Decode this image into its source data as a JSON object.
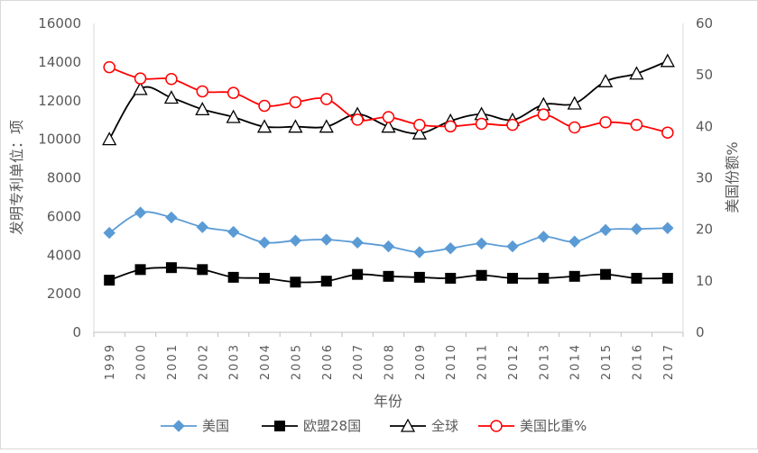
{
  "chart_data": {
    "type": "line",
    "title": "",
    "xlabel": "年份",
    "ylabel": "发明专利单位：项",
    "y2label": "美国份额%",
    "ylim": [
      0,
      16000
    ],
    "y2lim": [
      0,
      60
    ],
    "yticks": [
      "0",
      "2000",
      "4000",
      "6000",
      "8000",
      "10000",
      "12000",
      "14000",
      "16000"
    ],
    "y2ticks": [
      "0",
      "10",
      "20",
      "30",
      "40",
      "50",
      "60"
    ],
    "categories": [
      "1999",
      "2000",
      "2001",
      "2002",
      "2003",
      "2004",
      "2005",
      "2006",
      "2007",
      "2008",
      "2009",
      "2010",
      "2011",
      "2012",
      "2013",
      "2014",
      "2015",
      "2016",
      "2017"
    ],
    "grid": false,
    "legend": "bottom",
    "series": [
      {
        "name": "美国",
        "axis": "left",
        "color": "#5b9bd5",
        "marker": "diamond",
        "values": [
          5150,
          6200,
          5950,
          5450,
          5200,
          4650,
          4750,
          4800,
          4650,
          4450,
          4150,
          4350,
          4600,
          4450,
          4950,
          4700,
          5300,
          5350,
          5400
        ]
      },
      {
        "name": "欧盟28国",
        "axis": "left",
        "color": "#000000",
        "marker": "square",
        "values": [
          2700,
          3250,
          3350,
          3250,
          2850,
          2800,
          2600,
          2650,
          3000,
          2900,
          2850,
          2800,
          2950,
          2800,
          2800,
          2900,
          3000,
          2800,
          2800
        ]
      },
      {
        "name": "全球",
        "axis": "left",
        "color": "#000000",
        "marker": "triangle",
        "values": [
          10000,
          12600,
          12150,
          11550,
          11150,
          10650,
          10650,
          10650,
          11300,
          10650,
          10300,
          10950,
          11300,
          11000,
          11800,
          11850,
          13000,
          13400,
          14050
        ]
      },
      {
        "name": "美国比重%",
        "axis": "right",
        "color": "#ff0000",
        "marker": "circle",
        "values": [
          51.5,
          49.3,
          49.2,
          46.8,
          46.5,
          44.0,
          44.7,
          45.3,
          41.3,
          41.8,
          40.3,
          40.0,
          40.5,
          40.3,
          42.3,
          39.8,
          40.8,
          40.3,
          38.8
        ]
      }
    ]
  }
}
